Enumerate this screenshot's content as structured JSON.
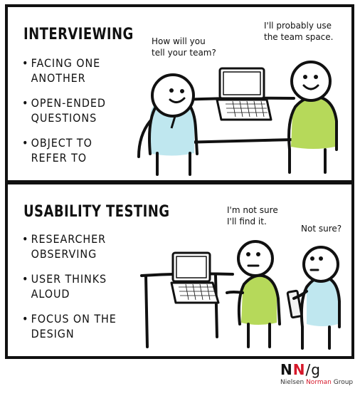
{
  "panels": [
    {
      "heading": "INTERVIEWING",
      "bullets": [
        "FACING ONE ANOTHER",
        "OPEN-ENDED QUESTIONS",
        "OBJECT TO REFER TO"
      ],
      "speech_left": [
        "How will you",
        "tell your team?"
      ],
      "speech_right": [
        "I'll probably use",
        "the team space."
      ],
      "colors": {
        "left_shirt": "#bfe7ef",
        "right_shirt": "#b6d95a"
      }
    },
    {
      "heading": "USABILITY TESTING",
      "bullets": [
        "RESEARCHER OBSERVING",
        "USER THINKS ALOUD",
        "FOCUS ON THE DESIGN"
      ],
      "speech_user": [
        "I'm not sure",
        "I'll find it."
      ],
      "speech_researcher": [
        "Not sure?"
      ],
      "colors": {
        "user_shirt": "#b6d95a",
        "researcher_shirt": "#bfe7ef"
      }
    }
  ],
  "logo": {
    "n1": "N",
    "n2": "N",
    "slash": "/",
    "g": "g",
    "name_1": "Nielsen",
    "name_2": "Norman",
    "name_3": "Group",
    "accent": "#d6182a"
  }
}
